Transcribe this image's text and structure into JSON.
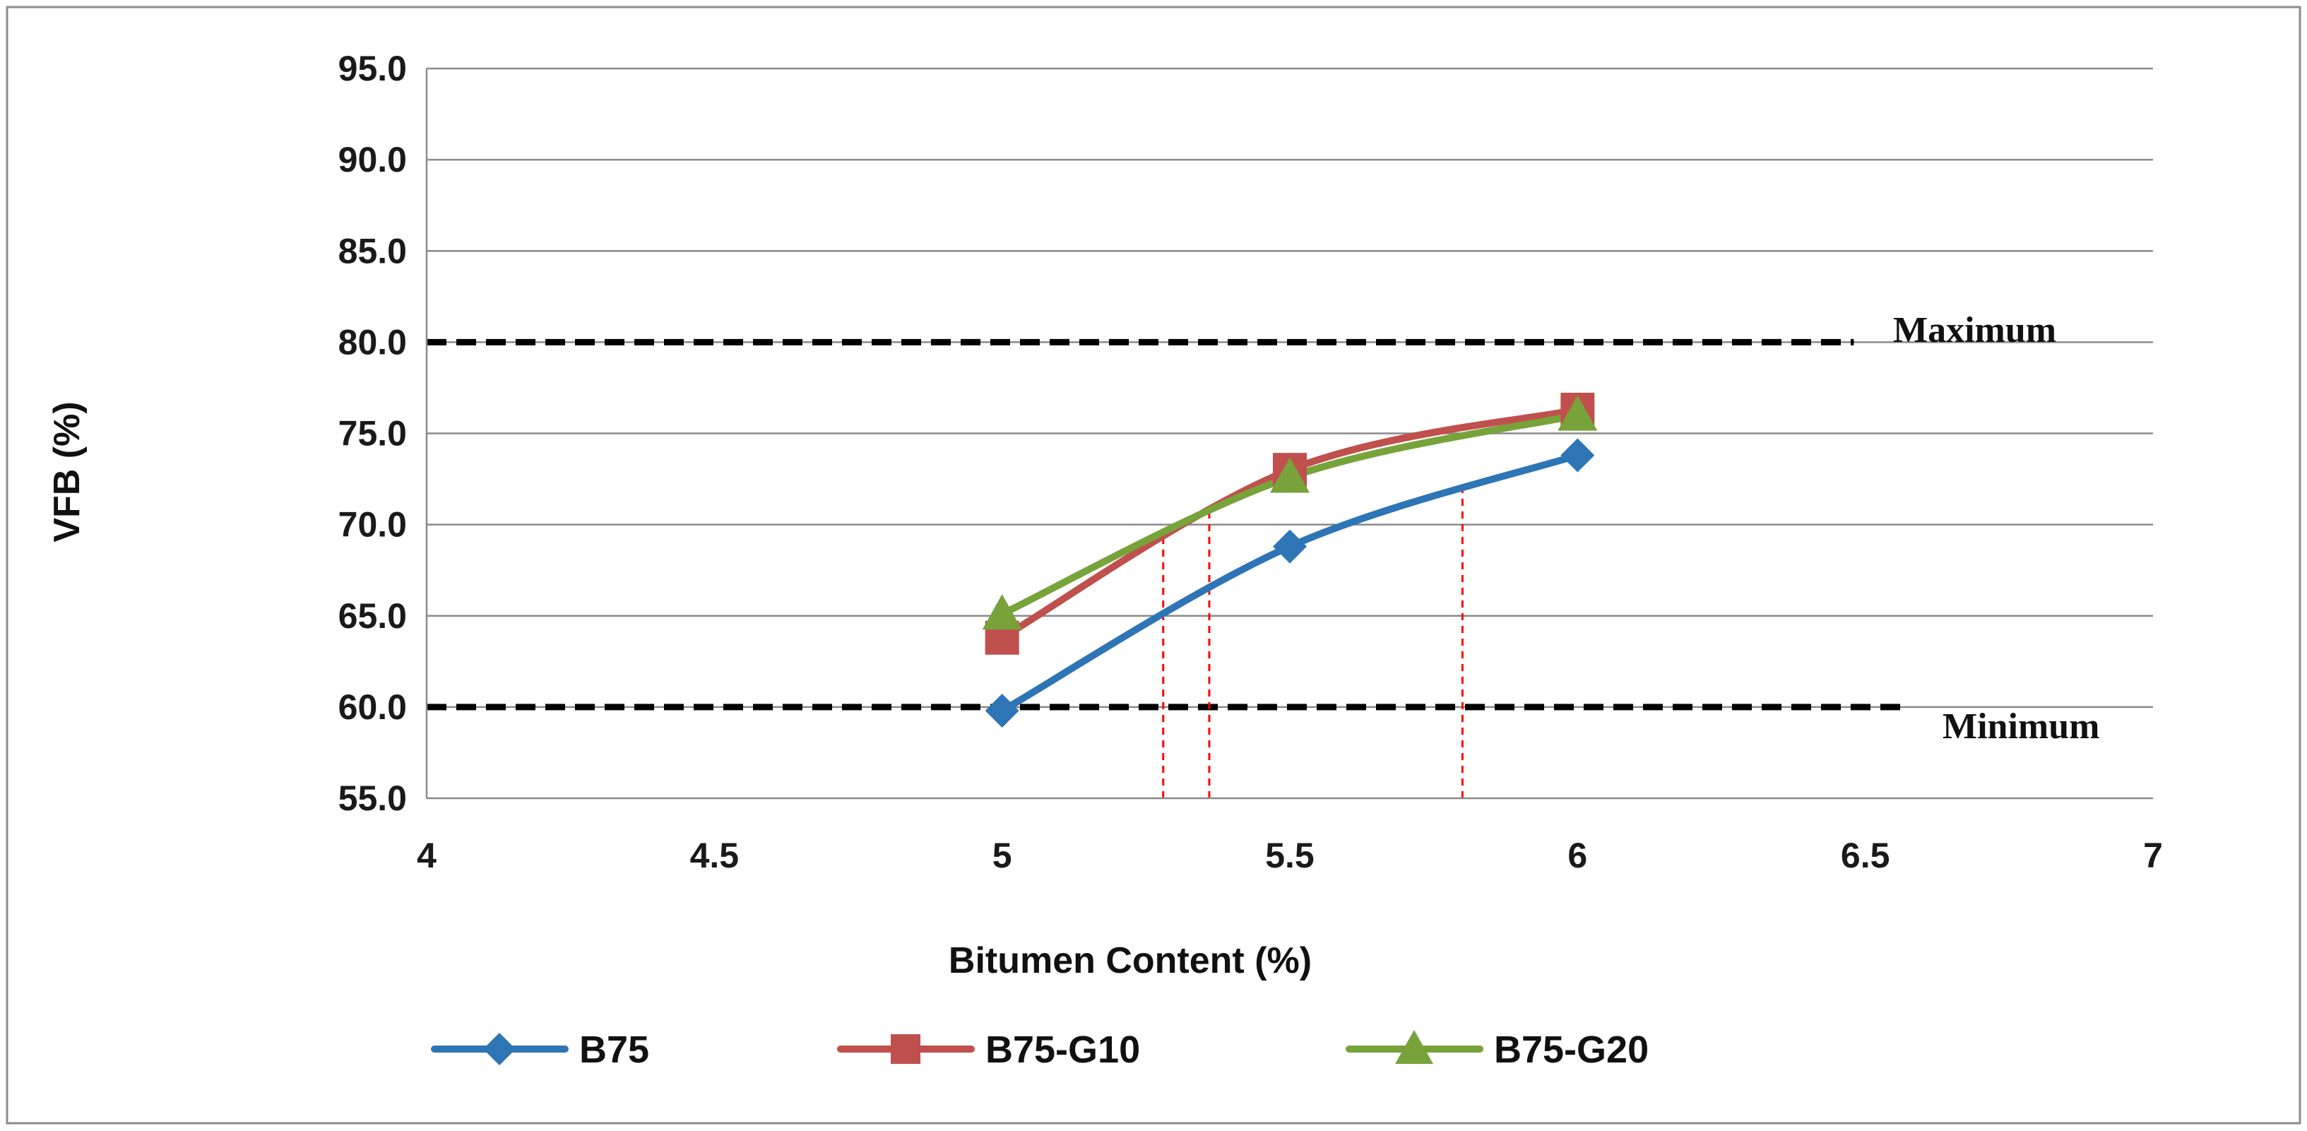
{
  "chart_data": {
    "type": "line",
    "title": "",
    "xlabel": "Bitumen Content (%)",
    "ylabel": "VFB (%)",
    "xlim": [
      4,
      7
    ],
    "ylim": [
      55,
      95
    ],
    "x_ticks": [
      4,
      4.5,
      5,
      5.5,
      6,
      6.5,
      7
    ],
    "x_tick_labels": [
      "4",
      "4.5",
      "5",
      "5.5",
      "6",
      "6.5",
      "7"
    ],
    "y_ticks": [
      55,
      60,
      65,
      70,
      75,
      80,
      85,
      90,
      95
    ],
    "y_tick_labels": [
      "55.0",
      "60.0",
      "65.0",
      "70.0",
      "75.0",
      "80.0",
      "85.0",
      "90.0",
      "95.0"
    ],
    "grid": true,
    "legend_position": "bottom",
    "series": [
      {
        "name": "B75",
        "color": "#2e75b6",
        "marker": "diamond",
        "x": [
          5,
          5.5,
          6
        ],
        "values": [
          59.8,
          68.8,
          73.8
        ]
      },
      {
        "name": "B75-G10",
        "color": "#c0504d",
        "marker": "square",
        "x": [
          5,
          5.5,
          6
        ],
        "values": [
          63.8,
          73.0,
          76.3
        ]
      },
      {
        "name": "B75-G20",
        "color": "#77a33a",
        "marker": "triangle",
        "x": [
          5,
          5.5,
          6
        ],
        "values": [
          65.1,
          72.6,
          76.0
        ]
      }
    ],
    "reference_lines": [
      {
        "name": "Maximum",
        "y": 80,
        "x_start": 4,
        "x_end": 6.48
      },
      {
        "name": "Minimum",
        "y": 60,
        "x_start": 4,
        "x_end": 6.57
      }
    ],
    "guide_lines": [
      {
        "x": 5.28,
        "y": 69.5
      },
      {
        "x": 5.36,
        "y": 70.9
      },
      {
        "x": 5.8,
        "y": 72.3
      }
    ]
  }
}
